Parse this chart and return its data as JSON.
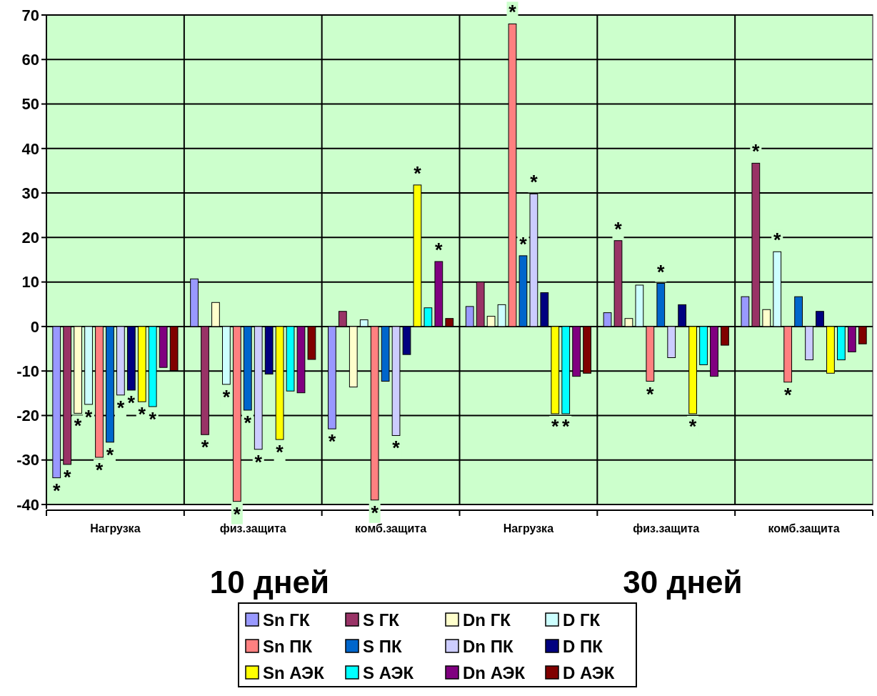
{
  "chart_data": {
    "type": "bar",
    "categories": [
      "Нагрузка",
      "физ.защита",
      "комб.защита",
      "Нагрузка",
      "физ.защита",
      "комб.защита"
    ],
    "ylim": [
      -40,
      70
    ],
    "yticks": [
      -40,
      -30,
      -20,
      -10,
      0,
      10,
      20,
      30,
      40,
      50,
      60,
      70
    ],
    "grid": true,
    "legend": "bottom",
    "annotations": [
      "10 дней",
      "30 дней"
    ],
    "series": [
      {
        "name": "Sn ГК",
        "color": "#9999ff",
        "values": [
          -34,
          10.7,
          -23,
          4.5,
          3.1,
          6.7
        ],
        "value_labels": [
          "*",
          null,
          "*",
          null,
          null,
          null
        ]
      },
      {
        "name": "S ГК",
        "color": "#993366",
        "values": [
          -31,
          -24.3,
          3.4,
          10,
          19.3,
          36.7
        ],
        "value_labels": [
          "*",
          "*",
          null,
          null,
          "*",
          "*"
        ]
      },
      {
        "name": "Dn ГК",
        "color": "#ffffcc",
        "values": [
          -19.5,
          5.4,
          -13.6,
          2.3,
          1.8,
          3.8
        ],
        "value_labels": [
          "*",
          null,
          null,
          null,
          null,
          null
        ]
      },
      {
        "name": "D ГК",
        "color": "#ccffff",
        "values": [
          -17.5,
          -13,
          1.5,
          4.9,
          9.3,
          16.8
        ],
        "value_labels": [
          "*",
          "*",
          null,
          null,
          null,
          "*"
        ]
      },
      {
        "name": "Sn ПК",
        "color": "#ff8080",
        "values": [
          -29.4,
          -39.3,
          -39,
          68,
          -12.3,
          -12.5
        ],
        "value_labels": [
          "*",
          "*",
          "*",
          "*",
          "*",
          "*"
        ]
      },
      {
        "name": "S ПК",
        "color": "#0066cc",
        "values": [
          -26,
          -18.8,
          -12.3,
          15.9,
          9.7,
          6.7
        ],
        "value_labels": [
          "*",
          "*",
          null,
          "*",
          "*",
          null
        ]
      },
      {
        "name": "Dn ПК",
        "color": "#ccccff",
        "values": [
          -15.4,
          -27.6,
          -24.5,
          29.8,
          -7,
          -7.5
        ],
        "value_labels": [
          "*",
          "*",
          "*",
          "*",
          null,
          null
        ]
      },
      {
        "name": "D ПК",
        "color": "#000080",
        "values": [
          -14.3,
          -10.7,
          -6.3,
          7.6,
          4.9,
          3.4
        ],
        "value_labels": [
          "*",
          null,
          null,
          null,
          null,
          null
        ]
      },
      {
        "name": "Sn АЭК",
        "color": "#ffff00",
        "values": [
          -16.9,
          -25.4,
          31.8,
          -19.6,
          -19.6,
          -10.5
        ],
        "value_labels": [
          "*",
          "*",
          "*",
          "*",
          "*",
          null
        ]
      },
      {
        "name": "S АЭК",
        "color": "#00ffff",
        "values": [
          -18,
          -14.5,
          4.2,
          -19.6,
          -8.6,
          -7.5
        ],
        "value_labels": [
          "*",
          null,
          null,
          "*",
          null,
          null
        ]
      },
      {
        "name": "Dn АЭК",
        "color": "#800080",
        "values": [
          -9.2,
          -14.9,
          14.6,
          -11.2,
          -11.2,
          -5.7
        ],
        "value_labels": [
          null,
          null,
          "*",
          null,
          null,
          null
        ]
      },
      {
        "name": "D АЭК",
        "color": "#800000",
        "values": [
          -9.9,
          -7.4,
          1.8,
          -10.5,
          -4.2,
          -3.9
        ],
        "value_labels": [
          null,
          null,
          null,
          null,
          null,
          null
        ]
      }
    ]
  }
}
